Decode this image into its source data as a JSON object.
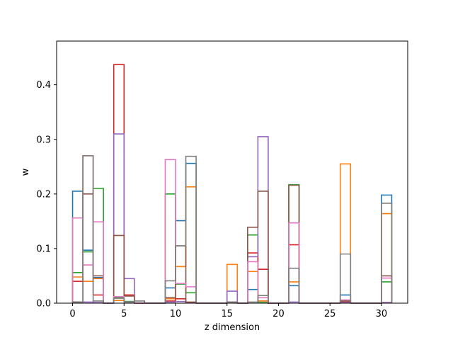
{
  "chart_data": {
    "type": "step",
    "xlabel": "z dimension",
    "ylabel": "w",
    "xlim": [
      -1.55,
      32.55
    ],
    "ylim": [
      0,
      0.48
    ],
    "xticks": [
      0,
      5,
      10,
      15,
      20,
      25,
      30
    ],
    "yticks": [
      0.0,
      0.1,
      0.2,
      0.3,
      0.4
    ],
    "xtick_labels": [
      "0",
      "5",
      "10",
      "15",
      "20",
      "25",
      "30"
    ],
    "ytick_labels": [
      "0.0",
      "0.1",
      "0.2",
      "0.3",
      "0.4"
    ],
    "grid": false,
    "legend": "none",
    "bin_edges": [
      0,
      1,
      2,
      3,
      4,
      5,
      6,
      7,
      8,
      9,
      10,
      11,
      12,
      13,
      14,
      15,
      16,
      17,
      18,
      19,
      20,
      21,
      22,
      23,
      24,
      25,
      26,
      27,
      28,
      29,
      30,
      31
    ],
    "series": [
      {
        "color": "#1f77b4",
        "values": [
          0.205,
          0.097,
          0.047,
          0,
          0.005,
          0.003,
          0,
          0,
          0,
          0.028,
          0.151,
          0.256,
          0,
          0,
          0,
          0.002,
          0,
          0.025,
          0.004,
          0,
          0,
          0.032,
          0,
          0,
          0,
          0,
          0.015,
          0,
          0,
          0,
          0.198
        ]
      },
      {
        "color": "#ff7f0e",
        "values": [
          0.048,
          0.04,
          0.045,
          0,
          0.005,
          0.015,
          0,
          0,
          0,
          0.008,
          0.067,
          0.213,
          0,
          0,
          0,
          0.071,
          0,
          0.058,
          0.004,
          0,
          0,
          0.039,
          0,
          0,
          0,
          0,
          0.255,
          0,
          0,
          0,
          0.164
        ]
      },
      {
        "color": "#2ca02c",
        "values": [
          0.056,
          0.094,
          0.21,
          0,
          0.01,
          0.003,
          0,
          0,
          0,
          0.2,
          0.035,
          0.019,
          0,
          0,
          0,
          0.001,
          0,
          0.125,
          0.001,
          0,
          0,
          0.217,
          0,
          0,
          0,
          0,
          0.005,
          0,
          0,
          0,
          0.039
        ]
      },
      {
        "color": "#d62728",
        "values": [
          0.04,
          0.27,
          0.015,
          0,
          0.437,
          0.015,
          0,
          0,
          0,
          0.004,
          0.008,
          0.001,
          0,
          0,
          0,
          0.001,
          0,
          0.092,
          0.062,
          0,
          0,
          0.107,
          0,
          0,
          0,
          0,
          0.002,
          0,
          0,
          0,
          0.001
        ]
      },
      {
        "color": "#9467bd",
        "values": [
          0.002,
          0.002,
          0.001,
          0,
          0.31,
          0.045,
          0,
          0,
          0,
          0.002,
          0.003,
          0.001,
          0,
          0,
          0,
          0.022,
          0,
          0.085,
          0.305,
          0,
          0,
          0.002,
          0,
          0,
          0,
          0,
          0.001,
          0,
          0,
          0,
          0.001
        ]
      },
      {
        "color": "#8c564b",
        "values": [
          0.002,
          0.2,
          0.05,
          0,
          0.124,
          0.013,
          0,
          0,
          0,
          0.01,
          0.105,
          0.002,
          0,
          0,
          0,
          0.001,
          0,
          0.139,
          0.205,
          0,
          0,
          0.216,
          0,
          0,
          0,
          0,
          0.004,
          0,
          0,
          0,
          0.05
        ]
      },
      {
        "color": "#e377c2",
        "values": [
          0.156,
          0.07,
          0.149,
          0,
          0.012,
          0.002,
          0,
          0,
          0,
          0.263,
          0.036,
          0.03,
          0,
          0,
          0,
          0.002,
          0,
          0.076,
          0.01,
          0,
          0,
          0.147,
          0,
          0,
          0,
          0,
          0.006,
          0,
          0,
          0,
          0.046
        ]
      },
      {
        "color": "#7f7f7f",
        "values": [
          0.002,
          0.27,
          0.004,
          0,
          0.009,
          0.002,
          0.004,
          0,
          0,
          0.041,
          0.105,
          0.269,
          0,
          0,
          0,
          0.002,
          0,
          0.002,
          0.014,
          0,
          0,
          0.064,
          0,
          0,
          0,
          0,
          0.09,
          0,
          0,
          0,
          0.183
        ]
      }
    ]
  }
}
